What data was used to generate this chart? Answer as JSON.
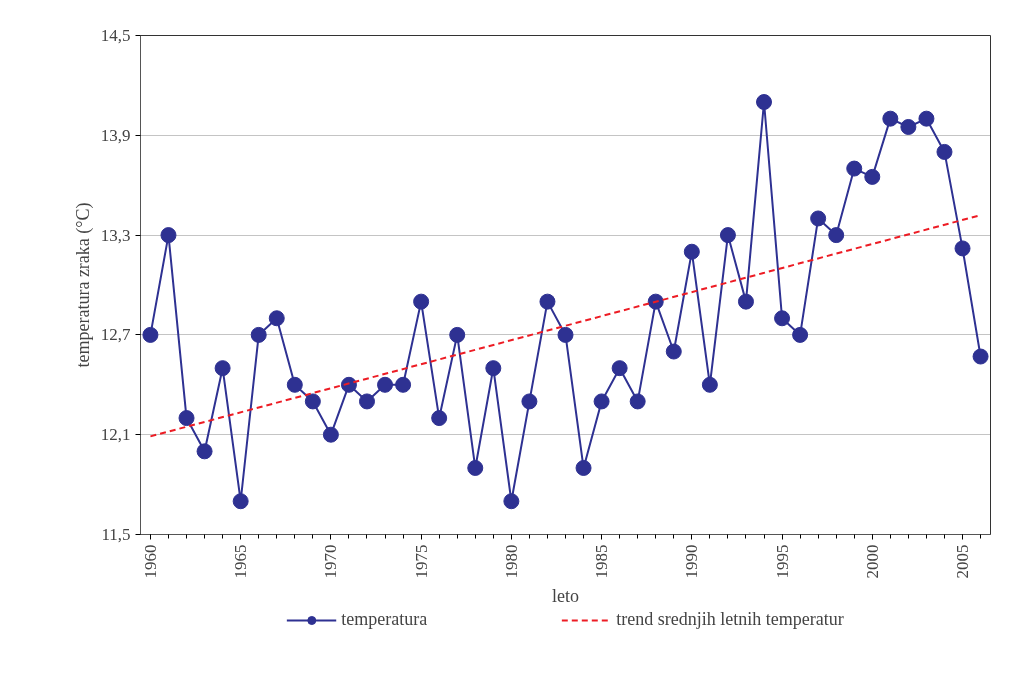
{
  "chart_data": {
    "type": "line",
    "xlabel": "leto",
    "ylabel": "temperatura zraka (°C)",
    "x": [
      1960,
      1961,
      1962,
      1963,
      1964,
      1965,
      1966,
      1967,
      1968,
      1969,
      1970,
      1971,
      1972,
      1973,
      1974,
      1975,
      1976,
      1977,
      1978,
      1979,
      1980,
      1981,
      1982,
      1983,
      1984,
      1985,
      1986,
      1987,
      1988,
      1989,
      1990,
      1991,
      1992,
      1993,
      1994,
      1995,
      1996,
      1997,
      1998,
      1999,
      2000,
      2001,
      2002,
      2003,
      2004,
      2005,
      2006
    ],
    "series": [
      {
        "name": "temperatura",
        "color": "#2e3192",
        "marker": "circle",
        "line_style": "solid",
        "values": [
          12.7,
          13.3,
          12.2,
          12.0,
          12.5,
          11.7,
          12.7,
          12.8,
          12.4,
          12.3,
          12.1,
          12.4,
          12.3,
          12.4,
          12.4,
          12.9,
          12.2,
          12.7,
          11.9,
          12.5,
          11.7,
          12.3,
          12.9,
          12.7,
          11.9,
          12.3,
          12.5,
          12.3,
          12.9,
          12.6,
          13.2,
          12.4,
          13.3,
          12.9,
          14.1,
          12.8,
          12.7,
          13.4,
          13.3,
          13.7,
          13.65,
          14.0,
          13.95,
          14.0,
          13.8,
          13.22,
          12.57
        ]
      },
      {
        "name": "trend srednjih letnih temperatur",
        "type": "line",
        "color": "#ed1c24",
        "marker": "none",
        "line_style": "dashed",
        "x": [
          1960,
          2006
        ],
        "values": [
          12.09,
          13.42
        ]
      }
    ],
    "xlim": [
      1959.45,
      2006.55
    ],
    "xticks": [
      1960,
      1965,
      1970,
      1975,
      1980,
      1985,
      1990,
      1995,
      2000,
      2005
    ],
    "ylim": [
      11.5,
      14.5
    ],
    "yticks": [
      {
        "value": 11.5,
        "label": "11,5"
      },
      {
        "value": 12.1,
        "label": "12,1"
      },
      {
        "value": 12.7,
        "label": "12,7"
      },
      {
        "value": 13.3,
        "label": "13,3"
      },
      {
        "value": 13.9,
        "label": "13,9"
      },
      {
        "value": 14.5,
        "label": "14,5"
      }
    ],
    "grid": "y",
    "legend": "bottom"
  }
}
